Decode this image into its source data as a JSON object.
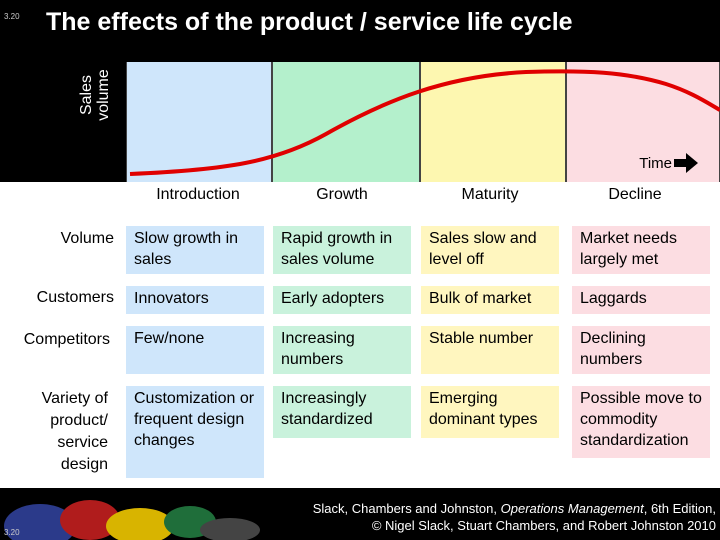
{
  "slide_number": "3.20",
  "title": "The effects of the product / service life cycle",
  "chart": {
    "y_label": "Sales volume",
    "x_label": "Time",
    "colors": {
      "introduction": "#cfe6fb",
      "growth": "#b4f0cc",
      "maturity": "#fdf7b0",
      "decline": "#fcdde2",
      "curve": "#e00000"
    }
  },
  "stages": [
    "Introduction",
    "Growth",
    "Maturity",
    "Decline"
  ],
  "rows": [
    {
      "label": "Volume",
      "cells": [
        "Slow growth in sales",
        "Rapid growth in sales volume",
        "Sales slow and level off",
        "Market needs largely met"
      ]
    },
    {
      "label": "Customers",
      "cells": [
        "Innovators",
        "Early adopters",
        "Bulk of market",
        "Laggards"
      ]
    },
    {
      "label": "Competitors",
      "cells": [
        "Few/none",
        "Increasing numbers",
        "Stable number",
        "Declining numbers"
      ]
    },
    {
      "label": "Variety of product/ service design",
      "cells": [
        "Customization or frequent design changes",
        "Increasingly standardized",
        "Emerging dominant types",
        "Possible move to commodity standardization"
      ]
    }
  ],
  "footer": {
    "line1_prefix": "Slack, Chambers and Johnston,",
    "line1_book": "Operations Management",
    "line1_suffix": ", 6th Edition,",
    "line2": "© Nigel Slack, Stuart Chambers, and Robert Johnston 2010"
  }
}
